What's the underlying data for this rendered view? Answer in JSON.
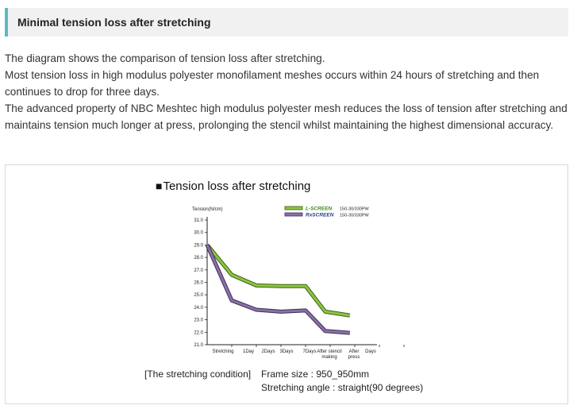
{
  "header": {
    "title": "Minimal tension loss after stretching"
  },
  "intro": {
    "paragraphs": [
      "The diagram shows the comparison of tension loss after stretching.",
      "Most tension loss in high modulus polyester monofilament meshes occurs within 24 hours of stretching and then continues to drop for three days.",
      "The advanced property of NBC Meshtec high modulus polyester mesh reduces the loss of tension after stretching and maintains tension much longer at press, prolonging the stencil whilst maintaining the highest dimensional accuracy."
    ]
  },
  "chart_data": {
    "type": "line",
    "title": "Tension loss after stretching",
    "title_marker": "■",
    "ylabel": "Tension(N/cm)",
    "ylim": [
      21.0,
      31.0
    ],
    "yticks": [
      "31.0",
      "30.0",
      "29.0",
      "28.0",
      "27.0",
      "26.0",
      "25.0",
      "24.0",
      "23.0",
      "22.0",
      "21.0"
    ],
    "categories": [
      "Stretching",
      "1Day",
      "2Days",
      "3Days",
      "7Days",
      "After stencil making",
      "After press",
      "Days"
    ],
    "series": [
      {
        "name": "L-SCREEN",
        "spec": "150-30/330PW",
        "color": "#8cc63f",
        "outline": "#3d5f17",
        "x": [
          0,
          1,
          2,
          3,
          4,
          4.8,
          5.8
        ],
        "values": [
          29.0,
          26.6,
          25.75,
          25.7,
          25.7,
          23.65,
          23.35
        ]
      },
      {
        "name": "RxSCREEN",
        "spec": "150-30/330PW",
        "color": "#8a6fa8",
        "outline": "#3f2f55",
        "x": [
          0,
          1,
          2,
          3,
          4,
          4.8,
          5.8
        ],
        "values": [
          29.0,
          24.55,
          23.8,
          23.65,
          23.75,
          22.1,
          21.95
        ]
      }
    ]
  },
  "condition": {
    "label": "[The stretching condition]",
    "frame_size": "Frame size : 950_950mm",
    "angle": "Stretching angle : straight(90 degrees)"
  }
}
